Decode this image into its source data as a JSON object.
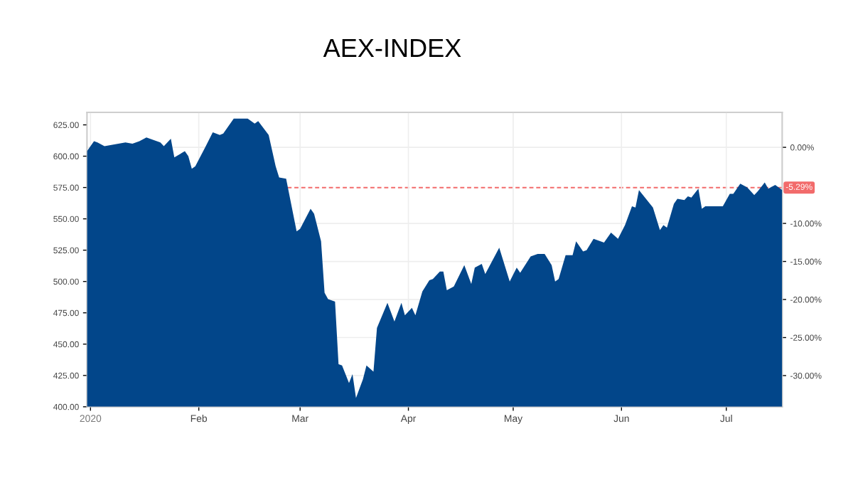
{
  "chart_data": {
    "type": "area",
    "title": "AEX-INDEX",
    "color": "#02468a",
    "x": [
      "2019-12-31",
      "2020-01-02",
      "2020-01-03",
      "2020-01-05",
      "2020-01-09",
      "2020-01-11",
      "2020-01-13",
      "2020-01-15",
      "2020-01-17",
      "2020-01-20",
      "2020-01-21",
      "2020-01-22",
      "2020-01-24",
      "2020-01-25",
      "2020-01-28",
      "2020-01-29",
      "2020-01-30",
      "2020-01-31",
      "2020-02-03",
      "2020-02-05",
      "2020-02-07",
      "2020-02-08",
      "2020-02-11",
      "2020-02-15",
      "2020-02-17",
      "2020-02-18",
      "2020-02-21",
      "2020-02-23",
      "2020-02-24",
      "2020-02-26",
      "2020-02-29",
      "2020-03-01",
      "2020-03-04",
      "2020-03-05",
      "2020-03-07",
      "2020-03-08",
      "2020-03-09",
      "2020-03-11",
      "2020-03-12",
      "2020-03-13",
      "2020-03-15",
      "2020-03-16",
      "2020-03-17",
      "2020-03-19",
      "2020-03-20",
      "2020-03-22",
      "2020-03-23",
      "2020-03-26",
      "2020-03-28",
      "2020-03-30",
      "2020-03-31",
      "2020-04-02",
      "2020-04-03",
      "2020-04-05",
      "2020-04-07",
      "2020-04-08",
      "2020-04-10",
      "2020-04-11",
      "2020-04-12",
      "2020-04-14",
      "2020-04-17",
      "2020-04-19",
      "2020-04-20",
      "2020-04-22",
      "2020-04-23",
      "2020-04-27",
      "2020-04-30",
      "2020-05-02",
      "2020-05-03",
      "2020-05-06",
      "2020-05-08",
      "2020-05-10",
      "2020-05-12",
      "2020-05-13",
      "2020-05-14",
      "2020-05-16",
      "2020-05-18",
      "2020-05-19",
      "2020-05-21",
      "2020-05-22",
      "2020-05-24",
      "2020-05-27",
      "2020-05-29",
      "2020-05-31",
      "2020-06-02",
      "2020-06-04",
      "2020-06-05",
      "2020-06-06",
      "2020-06-08",
      "2020-06-10",
      "2020-06-12",
      "2020-06-13",
      "2020-06-14",
      "2020-06-16",
      "2020-06-17",
      "2020-06-19",
      "2020-06-20",
      "2020-06-21",
      "2020-06-23",
      "2020-06-24",
      "2020-06-25",
      "2020-06-30",
      "2020-07-02",
      "2020-07-03",
      "2020-07-05",
      "2020-07-07",
      "2020-07-09",
      "2020-07-10",
      "2020-07-12",
      "2020-07-13",
      "2020-07-15",
      "2020-07-16",
      "2020-07-17"
    ],
    "values": [
      604,
      612,
      611,
      608,
      610,
      611,
      610,
      612,
      615,
      612,
      611,
      608,
      614,
      599,
      604,
      600,
      590,
      592,
      608,
      619,
      617,
      618,
      630,
      630,
      626,
      628,
      617,
      592,
      583,
      582,
      540,
      542,
      558,
      554,
      532,
      491,
      486,
      484,
      434,
      433,
      419,
      426,
      407,
      422,
      433,
      428,
      463,
      483,
      468,
      483,
      473,
      479,
      473,
      492,
      501,
      502,
      508,
      508,
      493,
      496,
      513,
      498,
      511,
      514,
      506,
      527,
      500,
      511,
      507,
      520,
      522,
      522,
      513,
      500,
      502,
      521,
      521,
      532,
      524,
      525,
      534,
      531,
      539,
      534,
      545,
      560,
      559,
      573,
      566,
      559,
      541,
      545,
      543,
      562,
      566,
      565,
      568,
      567,
      574,
      558,
      560,
      560,
      570,
      570,
      578,
      575,
      569,
      572,
      579,
      574,
      577,
      575,
      573
    ],
    "xlim": [
      "2019-12-31",
      "2020-07-17"
    ],
    "xticks": [
      {
        "value": "2020-01-01",
        "label": "2020"
      },
      {
        "value": "2020-02-01",
        "label": "Feb"
      },
      {
        "value": "2020-03-01",
        "label": "Mar"
      },
      {
        "value": "2020-04-01",
        "label": "Apr"
      },
      {
        "value": "2020-05-01",
        "label": "May"
      },
      {
        "value": "2020-06-01",
        "label": "Jun"
      },
      {
        "value": "2020-07-01",
        "label": "Jul"
      }
    ],
    "ylim": [
      400,
      635
    ],
    "yticks": [
      {
        "value": 400,
        "label": "400.00"
      },
      {
        "value": 425,
        "label": "425.00"
      },
      {
        "value": 450,
        "label": "450.00"
      },
      {
        "value": 475,
        "label": "475.00"
      },
      {
        "value": 500,
        "label": "500.00"
      },
      {
        "value": 525,
        "label": "525.00"
      },
      {
        "value": 550,
        "label": "550.00"
      },
      {
        "value": 575,
        "label": "575.00"
      },
      {
        "value": 600,
        "label": "600.00"
      },
      {
        "value": 625,
        "label": "625.00"
      }
    ],
    "y2lim": [
      -34.1,
      4.6
    ],
    "y2ticks": [
      {
        "value": 0,
        "label": "0.00%"
      },
      {
        "value": -10,
        "label": "-10.00%"
      },
      {
        "value": -15,
        "label": "-15.00%"
      },
      {
        "value": -20,
        "label": "-20.00%"
      },
      {
        "value": -25,
        "label": "-25.00%"
      },
      {
        "value": -30,
        "label": "-30.00%"
      }
    ],
    "ref_lines": [
      {
        "axis": "y2",
        "value": -5.29,
        "label": "-5.29%",
        "color": "#f26b6b",
        "line_style": "dashed"
      }
    ],
    "grid": true
  }
}
